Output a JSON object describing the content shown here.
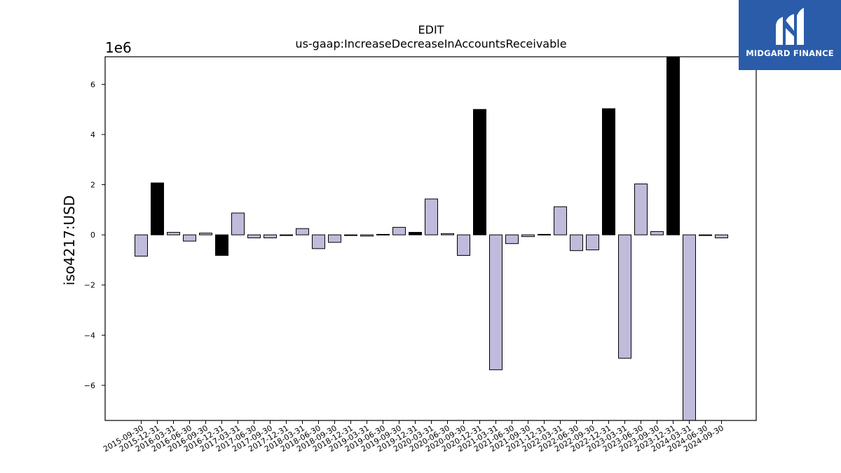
{
  "chart_data": {
    "type": "bar",
    "title": "EDIT",
    "subtitle": "us-gaap:IncreaseDecreaseInAccountsReceivable",
    "ylabel": "iso4217:USD",
    "xlabel": "",
    "y_offset_label": "1e6",
    "ylim": [
      -7.4,
      7.1
    ],
    "yticks": [
      -6,
      -4,
      -2,
      0,
      2,
      4,
      6
    ],
    "ytick_labels": [
      "−6",
      "−4",
      "−2",
      "0",
      "2",
      "4",
      "6"
    ],
    "grid": false,
    "colors": {
      "bar_default": "#bfbbdb",
      "bar_highlight": "#000000",
      "edge": "#000000"
    },
    "categories": [
      "2015-09-30",
      "2015-12-31",
      "2016-03-31",
      "2016-06-30",
      "2016-09-30",
      "2016-12-31",
      "2017-03-31",
      "2017-06-30",
      "2017-09-30",
      "2017-12-31",
      "2018-03-31",
      "2018-06-30",
      "2018-09-30",
      "2018-12-31",
      "2019-03-31",
      "2019-06-30",
      "2019-09-30",
      "2019-12-31",
      "2020-03-31",
      "2020-06-30",
      "2020-09-30",
      "2020-12-31",
      "2021-03-31",
      "2021-06-30",
      "2021-09-30",
      "2021-12-31",
      "2022-03-31",
      "2022-06-30",
      "2022-09-30",
      "2022-12-31",
      "2023-03-31",
      "2023-06-30",
      "2023-09-30",
      "2023-12-31",
      "2024-03-31",
      "2024-06-30",
      "2024-09-30"
    ],
    "values": [
      -0.85,
      2.07,
      0.1,
      -0.25,
      0.07,
      -0.82,
      0.87,
      -0.12,
      -0.12,
      -0.02,
      0.25,
      -0.55,
      -0.3,
      -0.02,
      -0.05,
      0.02,
      0.3,
      0.1,
      1.43,
      0.05,
      -0.82,
      5.0,
      -5.38,
      -0.35,
      -0.07,
      0.02,
      1.12,
      -0.63,
      -0.6,
      5.03,
      -4.92,
      2.03,
      0.13,
      7.1,
      -7.4,
      -0.02,
      -0.12
    ],
    "highlight": [
      false,
      true,
      false,
      false,
      false,
      true,
      false,
      false,
      false,
      false,
      false,
      false,
      false,
      false,
      false,
      false,
      false,
      true,
      false,
      false,
      false,
      true,
      false,
      false,
      false,
      false,
      false,
      false,
      false,
      true,
      false,
      false,
      false,
      true,
      false,
      false,
      false
    ]
  },
  "logo": {
    "text": "MIDGARD FINANCE",
    "background": "#2a5caa"
  }
}
